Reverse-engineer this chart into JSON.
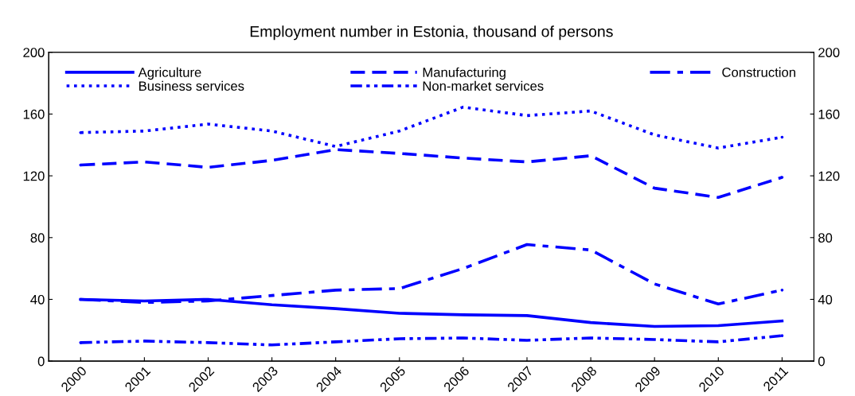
{
  "chart_data": {
    "type": "line",
    "title": "Employment number in Estonia, thousand of persons",
    "categories": [
      "2000",
      "2001",
      "2002",
      "2003",
      "2004",
      "2005",
      "2006",
      "2007",
      "2008",
      "2009",
      "2010",
      "2011"
    ],
    "series": [
      {
        "name": "Agriculture",
        "color": "#0000ff",
        "line_style": "solid",
        "values": [
          40,
          39,
          40,
          36.5,
          34,
          31,
          30,
          29.5,
          25,
          22.5,
          23,
          26
        ]
      },
      {
        "name": "Manufacturing",
        "color": "#0000ff",
        "line_style": "dashed",
        "values": [
          127,
          129,
          125.5,
          130,
          137,
          134.5,
          131.5,
          129,
          133,
          112,
          106,
          119
        ]
      },
      {
        "name": "Construction",
        "color": "#0000ff",
        "line_style": "dashdot",
        "values": [
          40,
          38,
          39,
          42.5,
          46,
          47,
          60,
          75.5,
          72,
          50,
          37,
          46
        ]
      },
      {
        "name": "Business services",
        "color": "#0000ff",
        "line_style": "dotted",
        "values": [
          148,
          149,
          153.5,
          149,
          139,
          149,
          164.5,
          159,
          162,
          146.5,
          138,
          145
        ]
      },
      {
        "name": "Non-market services",
        "color": "#0000ff",
        "line_style": "dashdotdot",
        "values": [
          12,
          13,
          12,
          10.5,
          12.5,
          14.5,
          15,
          13.5,
          15,
          14,
          12.5,
          16.5
        ]
      }
    ],
    "ylim": [
      0,
      200
    ],
    "yticks": [
      0,
      40,
      80,
      120,
      160,
      200
    ],
    "y2lim": [
      0,
      200
    ],
    "y2ticks": [
      0,
      40,
      80,
      120,
      160,
      200
    ],
    "grid": false,
    "legend": "top",
    "marker": "none"
  }
}
